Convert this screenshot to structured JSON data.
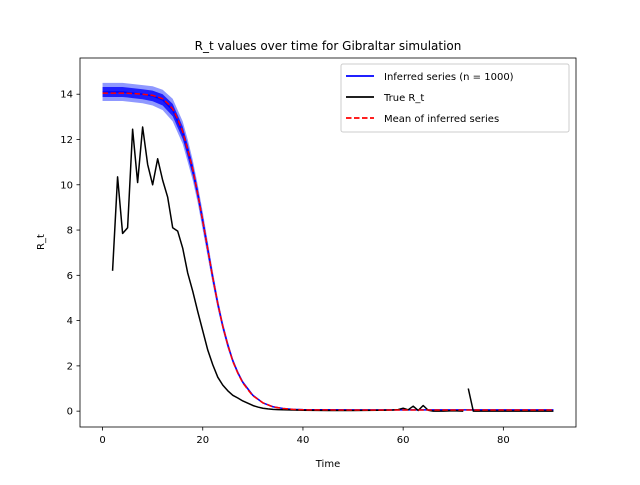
{
  "chart_data": {
    "type": "line",
    "title": "R_t values over time for Gibraltar simulation",
    "xlabel": "Time",
    "ylabel": "R_t",
    "xlim": [
      -4.5,
      94.5
    ],
    "ylim": [
      -0.7,
      15.6
    ],
    "xticks": [
      0,
      20,
      40,
      60,
      80
    ],
    "yticks": [
      0,
      2,
      4,
      6,
      8,
      10,
      12,
      14
    ],
    "xtick_labels": [
      "0",
      "20",
      "40",
      "60",
      "80"
    ],
    "ytick_labels": [
      "0",
      "2",
      "4",
      "6",
      "8",
      "10",
      "12",
      "14"
    ],
    "grid": false,
    "legend_position": "top-right",
    "colors": {
      "inferred": "#0000ff",
      "band": "#3344ff",
      "true": "#000000",
      "mean": "#ff0000"
    },
    "band": {
      "x": [
        0,
        2,
        4,
        6,
        8,
        10,
        12,
        14,
        16,
        17,
        18,
        19,
        20,
        21,
        22,
        23,
        24,
        25,
        26,
        27,
        28,
        30,
        32,
        34,
        36,
        38,
        40,
        50,
        60,
        70,
        80,
        90
      ],
      "upper": [
        14.5,
        14.5,
        14.5,
        14.45,
        14.4,
        14.35,
        14.2,
        13.8,
        12.8,
        12.0,
        11.1,
        10.0,
        8.8,
        7.5,
        6.2,
        5.0,
        3.95,
        3.1,
        2.35,
        1.8,
        1.35,
        0.75,
        0.4,
        0.22,
        0.14,
        0.1,
        0.08,
        0.07,
        0.07,
        0.07,
        0.07,
        0.07
      ],
      "lower": [
        13.7,
        13.7,
        13.7,
        13.65,
        13.6,
        13.5,
        13.3,
        12.8,
        11.8,
        11.0,
        10.2,
        9.2,
        8.0,
        6.8,
        5.6,
        4.5,
        3.55,
        2.75,
        2.1,
        1.6,
        1.2,
        0.65,
        0.33,
        0.17,
        0.1,
        0.06,
        0.05,
        0.04,
        0.04,
        0.04,
        0.04,
        0.04
      ]
    },
    "series": [
      {
        "name": "Inferred series (n = 1000)",
        "role": "inferred",
        "x": [],
        "y": []
      },
      {
        "name": "True R_t",
        "role": "true",
        "segments": [
          {
            "x": [
              2,
              3,
              4,
              5,
              6,
              7,
              8,
              9,
              10,
              11,
              12,
              13,
              14,
              15,
              16,
              17,
              18,
              19,
              20,
              21,
              22,
              23,
              24,
              25,
              26,
              27,
              28,
              29,
              30,
              31,
              32,
              33,
              34,
              35,
              36,
              38,
              40,
              45,
              50,
              55,
              58,
              59,
              60,
              61,
              62,
              63,
              64,
              65,
              66,
              68,
              70,
              72
            ],
            "y": [
              6.2,
              10.35,
              7.85,
              8.1,
              12.45,
              10.1,
              12.55,
              10.9,
              10.0,
              11.15,
              10.2,
              9.45,
              8.1,
              7.95,
              7.2,
              6.1,
              5.3,
              4.4,
              3.55,
              2.7,
              2.05,
              1.5,
              1.15,
              0.9,
              0.7,
              0.58,
              0.45,
              0.35,
              0.25,
              0.18,
              0.13,
              0.1,
              0.08,
              0.07,
              0.06,
              0.05,
              0.04,
              0.03,
              0.03,
              0.04,
              0.05,
              0.07,
              0.13,
              0.06,
              0.22,
              0.03,
              0.25,
              0.04,
              0.0,
              0.0,
              0.02,
              0.0
            ]
          },
          {
            "x": [
              73,
              74,
              76,
              80,
              90
            ],
            "y": [
              1.0,
              0.0,
              0.0,
              0.0,
              0.0
            ]
          }
        ]
      },
      {
        "name": "Mean of inferred series",
        "role": "mean",
        "x": [
          0,
          2,
          4,
          6,
          8,
          10,
          12,
          13,
          14,
          15,
          16,
          17,
          18,
          19,
          20,
          21,
          22,
          23,
          24,
          25,
          26,
          27,
          28,
          29,
          30,
          32,
          34,
          36,
          38,
          40,
          50,
          60,
          70,
          80,
          90
        ],
        "y": [
          14.05,
          14.05,
          14.05,
          14.03,
          14.0,
          13.95,
          13.8,
          13.6,
          13.35,
          12.9,
          12.35,
          11.55,
          10.7,
          9.6,
          8.4,
          7.15,
          5.9,
          4.75,
          3.75,
          2.92,
          2.2,
          1.68,
          1.25,
          0.95,
          0.68,
          0.37,
          0.19,
          0.12,
          0.08,
          0.06,
          0.05,
          0.05,
          0.05,
          0.05,
          0.05
        ]
      }
    ]
  }
}
